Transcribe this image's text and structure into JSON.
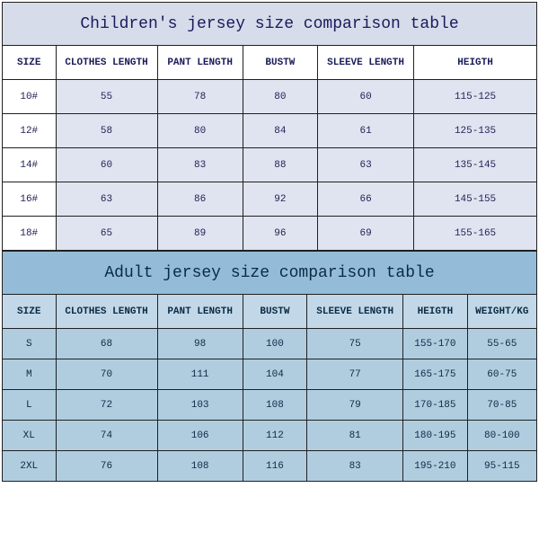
{
  "children": {
    "title": "Children's jersey size comparison table",
    "title_bg": "#d6dcea",
    "header_bg": "#ffffff",
    "row_bg": "#e0e4f0",
    "text_color": "#1a1a5a",
    "columns": [
      "SIZE",
      "CLOTHES LENGTH",
      "PANT LENGTH",
      "BUSTW",
      "SLEEVE LENGTH",
      "HEIGTH"
    ],
    "col_widths_pct": [
      10,
      19,
      16,
      14,
      18,
      23
    ],
    "rows": [
      [
        "10#",
        "55",
        "78",
        "80",
        "60",
        "115-125"
      ],
      [
        "12#",
        "58",
        "80",
        "84",
        "61",
        "125-135"
      ],
      [
        "14#",
        "60",
        "83",
        "88",
        "63",
        "135-145"
      ],
      [
        "16#",
        "63",
        "86",
        "92",
        "66",
        "145-155"
      ],
      [
        "18#",
        "65",
        "89",
        "96",
        "69",
        "155-165"
      ]
    ]
  },
  "adult": {
    "title": "Adult jersey size comparison table",
    "title_bg": "#94bcd8",
    "header_bg": "#c2d8e8",
    "row_bg": "#b0cde0",
    "text_color": "#0b2a44",
    "columns": [
      "SIZE",
      "CLOTHES LENGTH",
      "PANT LENGTH",
      "BUSTW",
      "SLEEVE LENGTH",
      "HEIGTH",
      "WEIGHT/KG"
    ],
    "col_widths_pct": [
      10,
      19,
      16,
      12,
      18,
      12,
      13
    ],
    "rows": [
      [
        "S",
        "68",
        "98",
        "100",
        "75",
        "155-170",
        "55-65"
      ],
      [
        "M",
        "70",
        "111",
        "104",
        "77",
        "165-175",
        "60-75"
      ],
      [
        "L",
        "72",
        "103",
        "108",
        "79",
        "170-185",
        "70-85"
      ],
      [
        "XL",
        "74",
        "106",
        "112",
        "81",
        "180-195",
        "80-100"
      ],
      [
        "2XL",
        "76",
        "108",
        "116",
        "83",
        "195-210",
        "95-115"
      ]
    ]
  }
}
